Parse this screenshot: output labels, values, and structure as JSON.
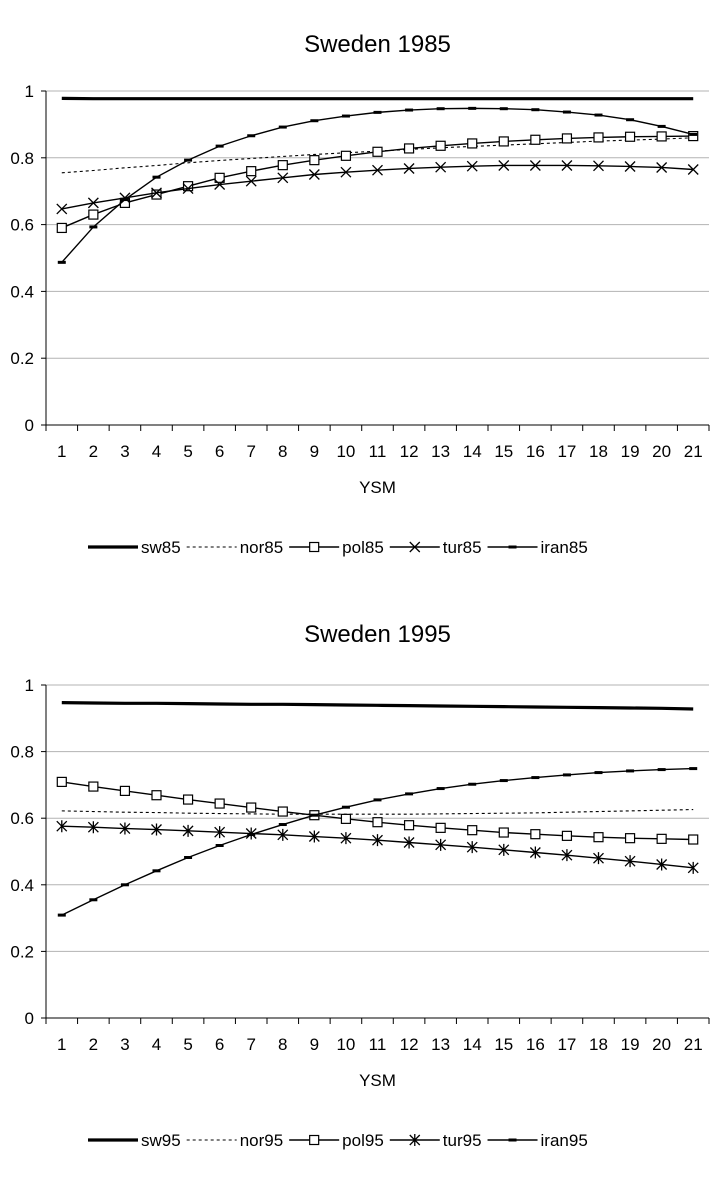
{
  "chart_data": [
    {
      "type": "line",
      "title": "Sweden 1985",
      "xlabel": "YSM",
      "ylabel": "",
      "ylim": [
        0,
        1
      ],
      "yticks": [
        "0",
        "0.2",
        "0.4",
        "0.6",
        "0.8",
        "1"
      ],
      "categories": [
        "1",
        "2",
        "3",
        "4",
        "5",
        "6",
        "7",
        "8",
        "9",
        "10",
        "11",
        "12",
        "13",
        "14",
        "15",
        "16",
        "17",
        "18",
        "19",
        "20",
        "21"
      ],
      "grid": true,
      "legend": "bottom",
      "series": [
        {
          "name": "sw85",
          "style": "thick",
          "values": [
            0.978,
            0.977,
            0.977,
            0.977,
            0.977,
            0.977,
            0.977,
            0.977,
            0.977,
            0.977,
            0.977,
            0.977,
            0.977,
            0.977,
            0.977,
            0.977,
            0.977,
            0.977,
            0.977,
            0.977,
            0.977
          ]
        },
        {
          "name": "nor85",
          "style": "dotted",
          "values": [
            0.755,
            0.762,
            0.77,
            0.777,
            0.785,
            0.792,
            0.798,
            0.804,
            0.81,
            0.815,
            0.82,
            0.825,
            0.83,
            0.834,
            0.838,
            0.842,
            0.846,
            0.85,
            0.853,
            0.856,
            0.86
          ]
        },
        {
          "name": "pol85",
          "style": "square",
          "values": [
            0.59,
            0.63,
            0.665,
            0.69,
            0.715,
            0.74,
            0.76,
            0.778,
            0.793,
            0.806,
            0.818,
            0.828,
            0.836,
            0.843,
            0.849,
            0.854,
            0.858,
            0.861,
            0.863,
            0.864,
            0.865
          ]
        },
        {
          "name": "tur85",
          "style": "cross",
          "values": [
            0.647,
            0.665,
            0.68,
            0.695,
            0.708,
            0.72,
            0.73,
            0.74,
            0.75,
            0.757,
            0.763,
            0.768,
            0.772,
            0.775,
            0.777,
            0.777,
            0.777,
            0.776,
            0.774,
            0.771,
            0.765
          ]
        },
        {
          "name": "iran85",
          "style": "dash",
          "values": [
            0.487,
            0.593,
            0.675,
            0.742,
            0.793,
            0.835,
            0.866,
            0.892,
            0.911,
            0.925,
            0.936,
            0.943,
            0.947,
            0.948,
            0.947,
            0.944,
            0.937,
            0.928,
            0.914,
            0.894,
            0.87
          ]
        }
      ]
    },
    {
      "type": "line",
      "title": "Sweden 1995",
      "xlabel": "YSM",
      "ylabel": "",
      "ylim": [
        0,
        1
      ],
      "yticks": [
        "0",
        "0.2",
        "0.4",
        "0.6",
        "0.8",
        "1"
      ],
      "categories": [
        "1",
        "2",
        "3",
        "4",
        "5",
        "6",
        "7",
        "8",
        "9",
        "10",
        "11",
        "12",
        "13",
        "14",
        "15",
        "16",
        "17",
        "18",
        "19",
        "20",
        "21"
      ],
      "grid": true,
      "legend": "bottom",
      "series": [
        {
          "name": "sw95",
          "style": "thick",
          "values": [
            0.947,
            0.946,
            0.945,
            0.945,
            0.944,
            0.943,
            0.942,
            0.942,
            0.941,
            0.94,
            0.939,
            0.938,
            0.937,
            0.936,
            0.935,
            0.934,
            0.933,
            0.932,
            0.931,
            0.93,
            0.928
          ]
        },
        {
          "name": "nor95",
          "style": "dotted",
          "values": [
            0.622,
            0.62,
            0.618,
            0.617,
            0.615,
            0.614,
            0.613,
            0.612,
            0.612,
            0.612,
            0.612,
            0.612,
            0.613,
            0.614,
            0.615,
            0.616,
            0.618,
            0.62,
            0.622,
            0.624,
            0.626
          ]
        },
        {
          "name": "pol95",
          "style": "square",
          "values": [
            0.709,
            0.695,
            0.682,
            0.669,
            0.656,
            0.644,
            0.632,
            0.62,
            0.609,
            0.598,
            0.588,
            0.579,
            0.571,
            0.564,
            0.557,
            0.552,
            0.547,
            0.543,
            0.54,
            0.538,
            0.536
          ]
        },
        {
          "name": "tur95",
          "style": "asterisk",
          "values": [
            0.576,
            0.573,
            0.569,
            0.566,
            0.562,
            0.558,
            0.554,
            0.55,
            0.545,
            0.54,
            0.534,
            0.527,
            0.52,
            0.513,
            0.505,
            0.497,
            0.489,
            0.48,
            0.471,
            0.461,
            0.451
          ]
        },
        {
          "name": "iran95",
          "style": "dash",
          "values": [
            0.309,
            0.355,
            0.4,
            0.442,
            0.482,
            0.518,
            0.551,
            0.581,
            0.609,
            0.633,
            0.655,
            0.673,
            0.689,
            0.702,
            0.713,
            0.722,
            0.73,
            0.737,
            0.742,
            0.746,
            0.749
          ]
        }
      ]
    }
  ]
}
